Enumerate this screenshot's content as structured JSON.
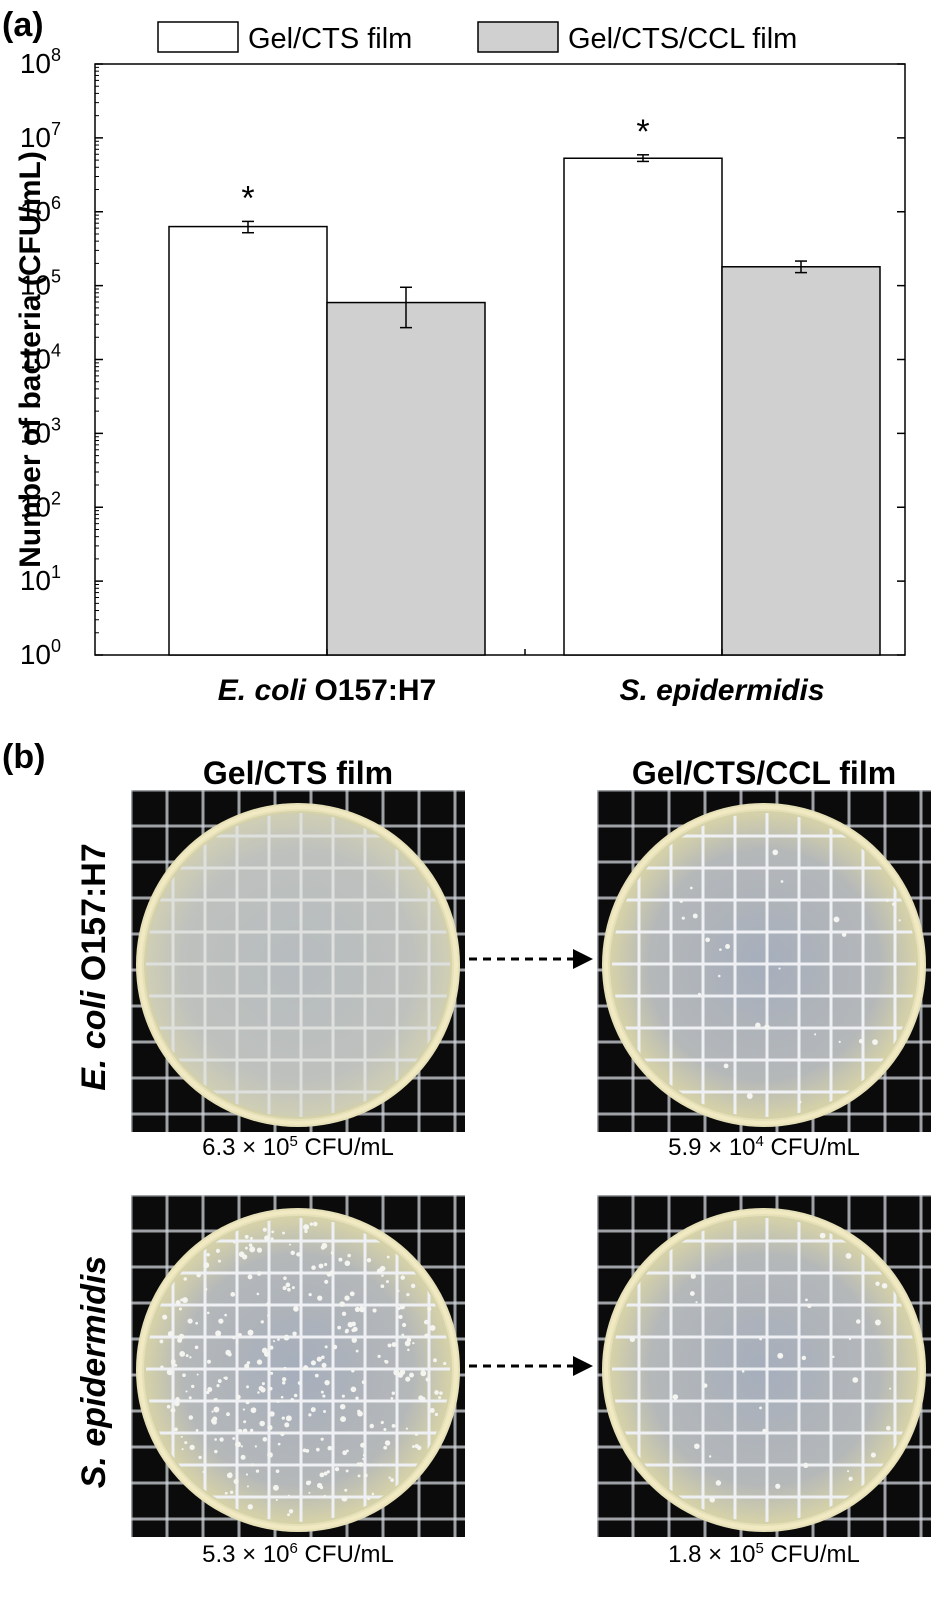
{
  "chart_data": {
    "type": "bar",
    "panel_label": "(a)",
    "ylabel": "Number of bacteria (CFU/mL)",
    "y_scale": "log",
    "ylim": [
      1,
      100000000
    ],
    "y_ticks": [
      {
        "base": "10",
        "exp": "0"
      },
      {
        "base": "10",
        "exp": "1"
      },
      {
        "base": "10",
        "exp": "2"
      },
      {
        "base": "10",
        "exp": "3"
      },
      {
        "base": "10",
        "exp": "4"
      },
      {
        "base": "10",
        "exp": "5"
      },
      {
        "base": "10",
        "exp": "6"
      },
      {
        "base": "10",
        "exp": "7"
      },
      {
        "base": "10",
        "exp": "8"
      }
    ],
    "categories": [
      {
        "italic": "E. coli",
        "normal": " O157:H7"
      },
      {
        "italic": "S. epidermidis",
        "normal": ""
      }
    ],
    "series": [
      {
        "name": "Gel/CTS film",
        "color": "#ffffff",
        "values": [
          630000,
          5300000
        ],
        "err_low": [
          520000,
          4800000
        ],
        "err_high": [
          740000,
          5900000
        ],
        "markers": [
          "*",
          "*"
        ]
      },
      {
        "name": "Gel/CTS/CCL film",
        "color": "#d0d0d0",
        "values": [
          59000,
          180000
        ],
        "err_low": [
          27000,
          150000
        ],
        "err_high": [
          95000,
          215000
        ],
        "markers": [
          "",
          ""
        ]
      }
    ],
    "legend_position": "top"
  },
  "panel_b": {
    "label": "(b)",
    "columns": [
      "Gel/CTS film",
      "Gel/CTS/CCL film"
    ],
    "rows": [
      {
        "title_italic": "E. coli",
        "title_normal": " O157:H7",
        "captions": [
          {
            "mant": "6.3",
            "times": "×",
            "base": "10",
            "exp": "5",
            "unit": "CFU/mL"
          },
          {
            "mant": "5.9",
            "times": "×",
            "base": "10",
            "exp": "4",
            "unit": "CFU/mL"
          }
        ]
      },
      {
        "title_italic": "S. epidermidis",
        "title_normal": "",
        "captions": [
          {
            "mant": "5.3",
            "times": "×",
            "base": "10",
            "exp": "6",
            "unit": "CFU/mL"
          },
          {
            "mant": "1.8",
            "times": "×",
            "base": "10",
            "exp": "5",
            "unit": "CFU/mL"
          }
        ]
      }
    ]
  }
}
